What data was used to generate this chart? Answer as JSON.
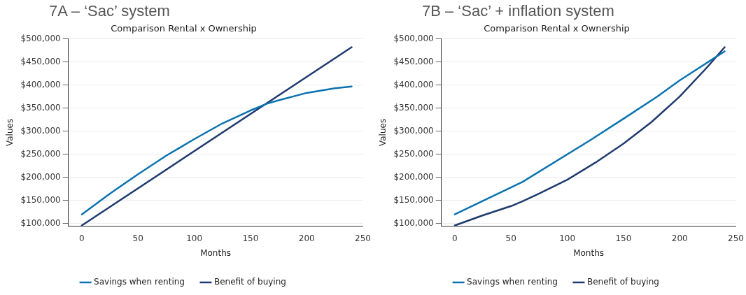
{
  "chart_data": [
    {
      "type": "line",
      "title": "7A – ‘Sac’ system",
      "subtitle": "Comparison Rental x Ownership",
      "xlabel": "Months",
      "ylabel": "Values",
      "xlim": [
        -12,
        250
      ],
      "xticks": [
        0,
        50,
        100,
        150,
        200,
        250
      ],
      "ylim": [
        95000,
        500000
      ],
      "yticks": [
        {
          "value": 100000,
          "label": "$100,000"
        },
        {
          "value": 150000,
          "label": "$150,000"
        },
        {
          "value": 200000,
          "label": "$200,000"
        },
        {
          "value": 250000,
          "label": "$250,000"
        },
        {
          "value": 300000,
          "label": "$300,000"
        },
        {
          "value": 350000,
          "label": "$350,000"
        },
        {
          "value": 400000,
          "label": "$400,000"
        },
        {
          "value": 450000,
          "label": "$450,000"
        },
        {
          "value": 500000,
          "label": "$500,000"
        }
      ],
      "grid": "y",
      "legend": "bottom",
      "marker": "none",
      "line_style": "solid",
      "series": [
        {
          "name": "Savings when renting",
          "color": "#0a72b0",
          "x": [
            0,
            25,
            50,
            75,
            100,
            125,
            150,
            165,
            175,
            200,
            225,
            240
          ],
          "values": [
            120000,
            165000,
            207000,
            247000,
            283000,
            317000,
            345000,
            360000,
            367000,
            383000,
            393000,
            397000
          ]
        },
        {
          "name": "Benefit of buying",
          "color": "#1f3a6e",
          "x": [
            0,
            240
          ],
          "values": [
            96000,
            482000
          ]
        }
      ]
    },
    {
      "type": "line",
      "title": "7B – ‘Sac’ + inflation system",
      "subtitle": "Comparison Rental x Ownership",
      "xlabel": "Months",
      "ylabel": "Values",
      "xlim": [
        -12,
        250
      ],
      "xticks": [
        0,
        50,
        100,
        150,
        200,
        250
      ],
      "ylim": [
        95000,
        500000
      ],
      "yticks": [
        {
          "value": 100000,
          "label": "$100,000"
        },
        {
          "value": 150000,
          "label": "$150,000"
        },
        {
          "value": 200000,
          "label": "$200,000"
        },
        {
          "value": 250000,
          "label": "$250,000"
        },
        {
          "value": 300000,
          "label": "$300,000"
        },
        {
          "value": 350000,
          "label": "$350,000"
        },
        {
          "value": 400000,
          "label": "$400,000"
        },
        {
          "value": 450000,
          "label": "$450,000"
        },
        {
          "value": 500000,
          "label": "$500,000"
        }
      ],
      "grid": "y",
      "legend": "bottom",
      "marker": "none",
      "line_style": "solid",
      "series": [
        {
          "name": "Savings when renting",
          "color": "#0a72b0",
          "x": [
            0,
            60,
            120,
            150,
            180,
            200,
            240
          ],
          "values": [
            120000,
            190000,
            280000,
            327000,
            375000,
            410000,
            473000
          ]
        },
        {
          "name": "Benefit of buying",
          "color": "#1f3a6e",
          "x": [
            0,
            25,
            50,
            60,
            75,
            100,
            125,
            150,
            175,
            200,
            225,
            240
          ],
          "values": [
            96000,
            118000,
            138000,
            148000,
            165000,
            195000,
            232000,
            273000,
            320000,
            375000,
            440000,
            482000
          ]
        }
      ]
    }
  ]
}
